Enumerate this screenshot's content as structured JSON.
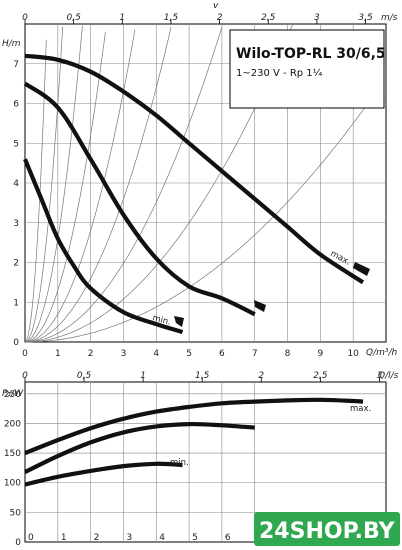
{
  "chart_data": [
    {
      "type": "line",
      "title": "Wilo-TOP-RL 30/6,5",
      "subtitle": "1~230 V - Rp 1¼",
      "ylabel": "H/m",
      "xlabel": "Q/m³/h",
      "x_ticks": [
        "0",
        "1",
        "2",
        "3",
        "4",
        "5",
        "6",
        "7",
        "8",
        "9",
        "10"
      ],
      "y_ticks": [
        "0",
        "1",
        "2",
        "3",
        "4",
        "5",
        "6",
        "7"
      ],
      "xlim": [
        0,
        11
      ],
      "ylim": [
        0,
        8
      ],
      "top_axis": {
        "label": "v",
        "unit": "m/s",
        "ticks": [
          "0",
          "0,5",
          "1",
          "1,5",
          "2",
          "2,5",
          "3",
          "3,5"
        ]
      },
      "grid": true,
      "annotations": [
        "max.",
        "min."
      ],
      "series": [
        {
          "x": [
            0,
            1,
            2,
            3,
            4,
            5,
            6,
            7,
            8,
            9,
            10.3
          ],
          "y": [
            7.2,
            7.1,
            6.8,
            6.3,
            5.7,
            5.0,
            4.3,
            3.6,
            2.9,
            2.2,
            1.5
          ]
        },
        {
          "x": [
            0,
            1,
            2,
            3,
            4,
            5,
            6,
            7
          ],
          "y": [
            6.5,
            5.9,
            4.6,
            3.2,
            2.1,
            1.4,
            1.1,
            0.7
          ]
        },
        {
          "x": [
            0,
            0.5,
            1,
            1.5,
            2,
            3,
            4,
            4.8
          ],
          "y": [
            4.6,
            3.6,
            2.6,
            1.9,
            1.35,
            0.75,
            0.45,
            0.25
          ]
        }
      ]
    },
    {
      "type": "line",
      "ylabel": "P₁/W",
      "xlabel": "Q/l/s",
      "x_ticks": [
        "0",
        "1",
        "2",
        "3",
        "4",
        "5",
        "6",
        "7"
      ],
      "y_ticks": [
        "0",
        "50",
        "100",
        "150",
        "200",
        "250"
      ],
      "xlim": [
        0,
        11
      ],
      "ylim": [
        0,
        270
      ],
      "top_axis": {
        "ticks": [
          "0",
          "0,5",
          "1",
          "1,5",
          "2",
          "2,5",
          "3"
        ]
      },
      "grid": true,
      "annotations": [
        "max.",
        "min."
      ],
      "series": [
        {
          "x": [
            0,
            1,
            2,
            3,
            4,
            5,
            6,
            7,
            8,
            9,
            10,
            10.3
          ],
          "y": [
            150,
            172,
            192,
            208,
            220,
            228,
            234,
            237,
            239,
            240,
            238,
            237
          ]
        },
        {
          "x": [
            0,
            1,
            2,
            3,
            4,
            5,
            6,
            7
          ],
          "y": [
            118,
            145,
            168,
            185,
            195,
            199,
            197,
            193
          ]
        },
        {
          "x": [
            0,
            1,
            2,
            3,
            4,
            4.8
          ],
          "y": [
            97,
            110,
            120,
            128,
            132,
            130
          ]
        }
      ]
    }
  ],
  "watermark": "24SHOP.BY",
  "colors": {
    "curve": "#111111",
    "grid": "#888888",
    "system_curve": "#777777",
    "watermark_bg": "#2fa84f"
  }
}
